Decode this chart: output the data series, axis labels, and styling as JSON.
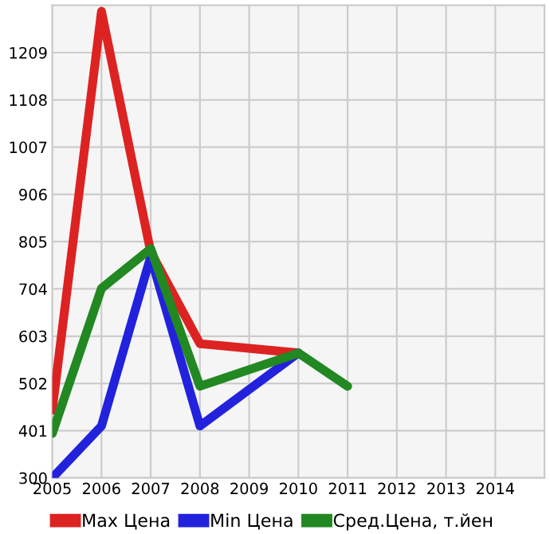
{
  "chart_data": {
    "type": "line",
    "xlim": [
      2005,
      2015
    ],
    "xticks": [
      2005,
      2006,
      2007,
      2008,
      2009,
      2010,
      2011,
      2012,
      2013,
      2014
    ],
    "ylim": [
      300,
      1310
    ],
    "yticks": [
      300,
      401,
      502,
      603,
      704,
      805,
      906,
      1007,
      1108,
      1209
    ],
    "grid": true,
    "legend": "bottom",
    "marker": "none",
    "line_style": "solid",
    "series": [
      {
        "name": "Max Цена",
        "color": "#dd2222",
        "x": [
          2005,
          2006,
          2007,
          2008,
          2010
        ],
        "values": [
          445,
          1297,
          783,
          587,
          567
        ]
      },
      {
        "name": "Min Цена",
        "color": "#2222dd",
        "x": [
          2005,
          2006,
          2007,
          2008,
          2010
        ],
        "values": [
          300,
          411,
          773,
          411,
          567
        ]
      },
      {
        "name": "Сред.Цена, т.йен",
        "color": "#228822",
        "x": [
          2005,
          2006,
          2007,
          2008,
          2010,
          2011
        ],
        "values": [
          395,
          705,
          790,
          496,
          567,
          496
        ]
      }
    ]
  }
}
